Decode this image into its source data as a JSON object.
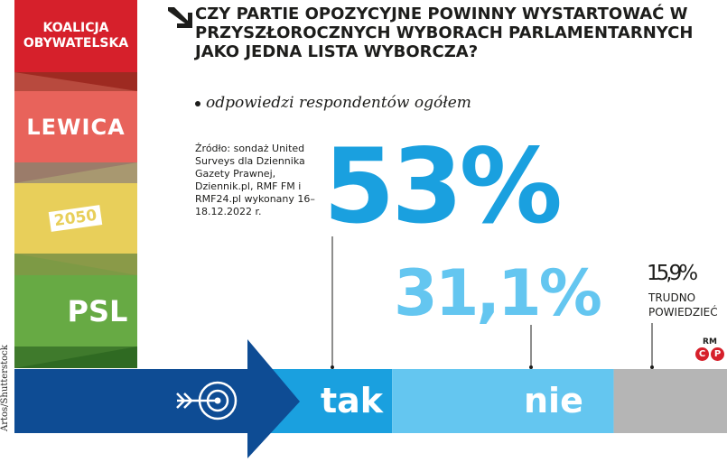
{
  "parties": [
    {
      "name": "KOALICJA\nOBYWATELSKA",
      "color": "#d6202b"
    },
    {
      "name": "LEWICA",
      "color": "#e8635b"
    },
    {
      "name": "2050",
      "color": "#e8cf5a"
    },
    {
      "name": "PSL",
      "color": "#67aa44"
    }
  ],
  "photo_credit": "Artos/Shutterstock",
  "headline": "CZY PARTIE OPOZYCYJNE POWINNY WYSTARTOWAĆ W PRZYSZŁOROCZNYCH WYBORACH PARLAMENTARNYCH JAKO JEDNA LISTA WYBORCZA?",
  "subtitle": "odpowiedzi respondentów ogółem",
  "source": "Źródło: sondaż United Surveys dla Dziennika Gazety Prawnej, Dziennik.pl, RMF FM i RMF24.pl wykonany 16–18.12.2022 r.",
  "rm_logo": {
    "text": "RM",
    "letters": [
      "C",
      "P"
    ]
  },
  "icons": {
    "headline": "arrow-down-right-icon",
    "target": "target-arrow-icon",
    "clover": "clover-icon"
  },
  "chart_data": {
    "type": "bar",
    "orientation": "stacked-horizontal",
    "categories": [
      "tak",
      "nie",
      "TRUDNO POWIEDZIEĆ"
    ],
    "values": [
      53,
      31.1,
      15.9
    ],
    "value_labels": [
      "53%",
      "31,1%",
      "15,9%"
    ],
    "colors": [
      "#1aa0df",
      "#64c6f0",
      "#b5b5b5"
    ],
    "title": "CZY PARTIE OPOZYCYJNE POWINNY WYSTARTOWAĆ W PRZYSZŁOROCZNYCH WYBORACH PARLAMENTARNYCH JAKO JEDNA LISTA WYBORCZA?",
    "subtitle": "odpowiedzi respondentów ogółem",
    "unit": "%"
  }
}
